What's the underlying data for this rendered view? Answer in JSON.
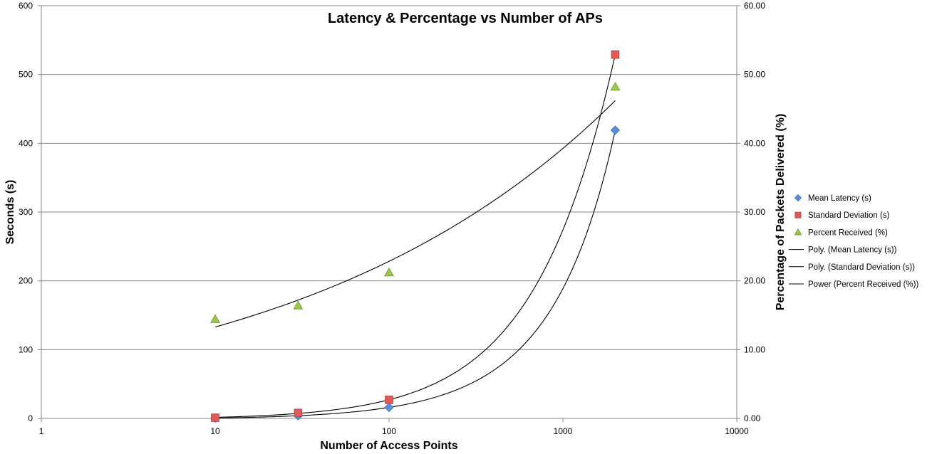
{
  "chart_data": {
    "type": "scatter",
    "title": "Latency & Percentage vs Number of APs",
    "xlabel": "Number of Access Points",
    "ylabel": "Seconds (s)",
    "y2label": "Percentage of Packets Delivered (%)",
    "x_scale": "log",
    "xlim": [
      1,
      10000
    ],
    "ylim": [
      0,
      600
    ],
    "y2lim": [
      0,
      60
    ],
    "x_ticks": [
      "1",
      "10",
      "100",
      "1000",
      "10000"
    ],
    "y_ticks": [
      "0",
      "100",
      "200",
      "300",
      "400",
      "500",
      "600"
    ],
    "y2_ticks": [
      "0.00",
      "10.00",
      "20.00",
      "30.00",
      "40.00",
      "50.00",
      "60.00"
    ],
    "grid": "horizontal",
    "legend_position": "right",
    "series": [
      {
        "name": "Mean Latency (s)",
        "axis": "primary",
        "marker": "diamond",
        "color": "#5b8fd9",
        "x": [
          10,
          30,
          100,
          2000
        ],
        "y": [
          0.5,
          4,
          16,
          419
        ]
      },
      {
        "name": "Standard Deviation (s)",
        "axis": "primary",
        "marker": "square",
        "color": "#e05a5a",
        "x": [
          10,
          30,
          100,
          2000
        ],
        "y": [
          1,
          8,
          27,
          529
        ]
      },
      {
        "name": "Percent Received (%)",
        "axis": "secondary",
        "marker": "triangle",
        "color": "#9bc84a",
        "x": [
          10,
          30,
          100,
          2000
        ],
        "y": [
          14.4,
          16.4,
          21.2,
          48.2
        ]
      }
    ],
    "trendlines": [
      {
        "name": "Poly. (Mean Latency (s))",
        "type": "polynomial",
        "of": "Mean Latency (s)"
      },
      {
        "name": "Poly. (Standard Deviation (s))",
        "type": "polynomial",
        "of": "Standard Deviation (s)"
      },
      {
        "name": "Power (Percent Received (%))",
        "type": "power",
        "of": "Percent Received (%)"
      }
    ]
  }
}
